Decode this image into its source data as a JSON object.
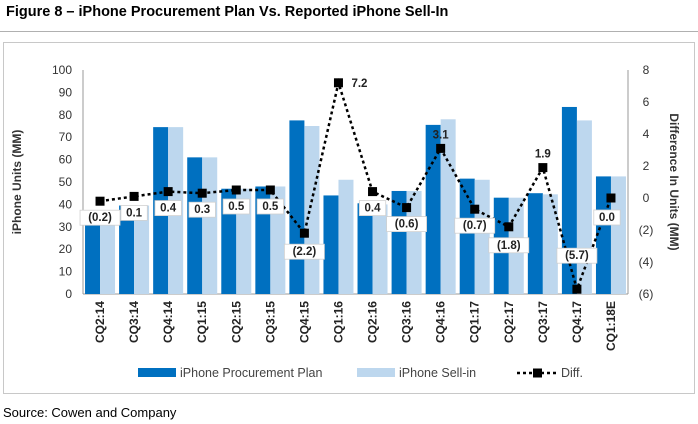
{
  "title": "Figure 8 – iPhone Procurement Plan Vs. Reported iPhone Sell-In",
  "source": "Source: Cowen and Company",
  "colors": {
    "procurement": "#0070c0",
    "sell_in": "#bdd7ee",
    "diff": "#000000"
  },
  "chart_data": {
    "type": "bar",
    "categories": [
      "CQ2:14",
      "CQ3:14",
      "CQ4:14",
      "CQ1:15",
      "CQ2:15",
      "CQ3:15",
      "CQ4:15",
      "CQ1:16",
      "CQ2:16",
      "CQ3:16",
      "CQ4:16",
      "CQ1:17",
      "CQ2:17",
      "CQ3:17",
      "CQ4:17",
      "CQ1:18E"
    ],
    "series": [
      {
        "name": "iPhone Procurement Plan",
        "type": "bar",
        "axis": "left",
        "values": [
          35.5,
          39.5,
          74.5,
          61,
          47,
          48,
          77.5,
          44,
          40.5,
          46,
          75.5,
          51.5,
          43,
          45,
          83.5,
          52.5
        ]
      },
      {
        "name": "iPhone Sell-in",
        "type": "bar",
        "axis": "left",
        "values": [
          35.5,
          39.5,
          74.5,
          61,
          47,
          48,
          75,
          51,
          40,
          46,
          78,
          51,
          43,
          44.5,
          77.5,
          52.5
        ]
      },
      {
        "name": "Diff.",
        "type": "line",
        "axis": "right",
        "values": [
          -0.2,
          0.1,
          0.4,
          0.3,
          0.5,
          0.5,
          -2.2,
          7.2,
          0.4,
          -0.6,
          3.1,
          -0.7,
          -1.8,
          1.9,
          -5.7,
          0.0
        ],
        "labels": [
          "(0.2)",
          "0.1",
          "0.4",
          "0.3",
          "0.5",
          "0.5",
          "(2.2)",
          "7.2",
          "0.4",
          "(0.6)",
          "3.1",
          "(0.7)",
          "(1.8)",
          "1.9",
          "(5.7)",
          "0.0"
        ],
        "boxed": [
          true,
          true,
          true,
          true,
          true,
          true,
          true,
          false,
          true,
          true,
          false,
          true,
          true,
          false,
          true,
          true
        ]
      }
    ],
    "y_left": {
      "label": "iPhone Units (MM)",
      "ylim": [
        0,
        100
      ],
      "ticks": [
        "0",
        "10",
        "20",
        "30",
        "40",
        "50",
        "60",
        "70",
        "80",
        "90",
        "100"
      ]
    },
    "y_right": {
      "label": "Difference In Units (MM)",
      "ylim": [
        -6,
        8
      ],
      "ticks": [
        "(6)",
        "(4)",
        "(2)",
        "0",
        "2",
        "4",
        "6",
        "8"
      ]
    },
    "grid": false,
    "legend": {
      "position": "bottom",
      "entries": [
        "iPhone Procurement Plan",
        "iPhone Sell-in",
        "Diff."
      ]
    }
  }
}
